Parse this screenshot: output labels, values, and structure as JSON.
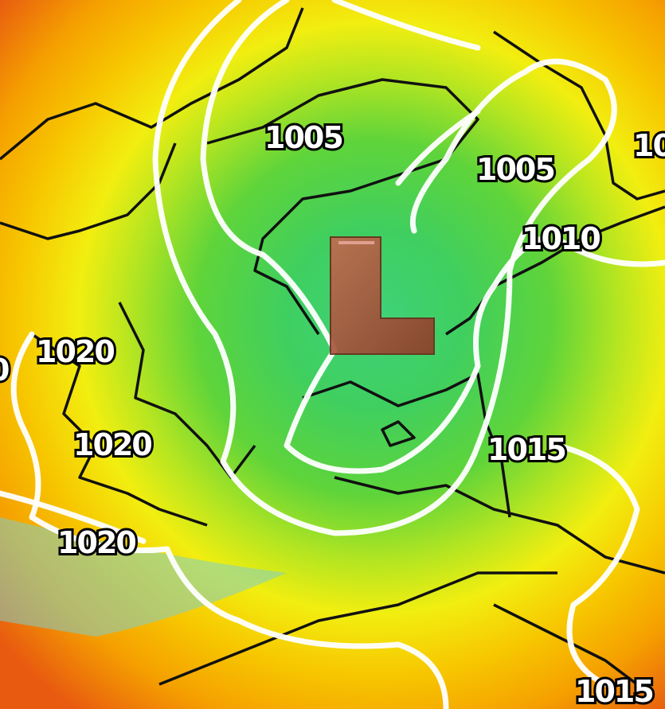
{
  "map": {
    "colors": {
      "low_center": "#3fd27a",
      "green": "#5fd43a",
      "yellow": "#f2ee10",
      "orange": "#f5a000",
      "red": "#e85a10",
      "isobar": "#ffffff",
      "coast": "#111111",
      "low_symbol": "#b0503a"
    },
    "low_symbol": {
      "label": "L",
      "icon": "low-pressure-symbol"
    },
    "isobar_labels": [
      {
        "text": "1005"
      },
      {
        "text": "1005"
      },
      {
        "text": "1010"
      },
      {
        "text": "1020"
      },
      {
        "text": "1020"
      },
      {
        "text": "1020"
      },
      {
        "text": "1015"
      },
      {
        "text": "1015"
      },
      {
        "text": "10"
      },
      {
        "text": "0"
      }
    ]
  }
}
